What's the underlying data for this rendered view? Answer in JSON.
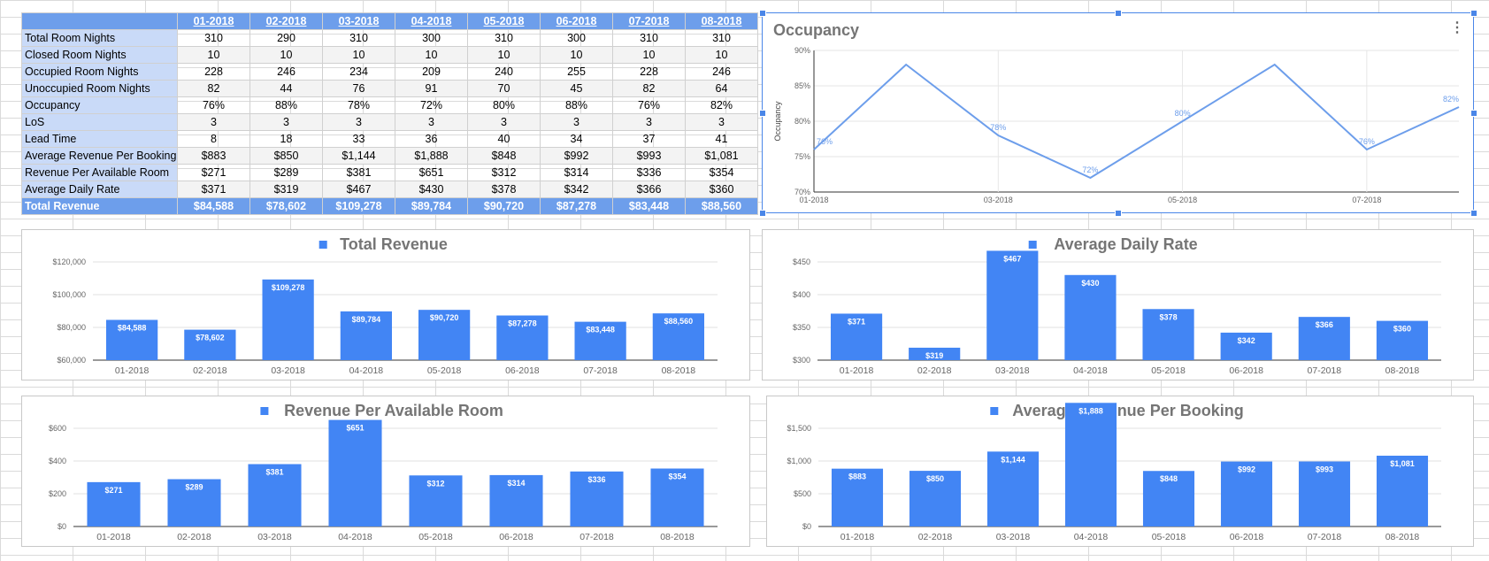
{
  "table": {
    "months": [
      "01-2018",
      "02-2018",
      "03-2018",
      "04-2018",
      "05-2018",
      "06-2018",
      "07-2018",
      "08-2018"
    ],
    "rows": [
      {
        "label": "Total Room Nights",
        "values": [
          "310",
          "290",
          "310",
          "300",
          "310",
          "300",
          "310",
          "310"
        ]
      },
      {
        "label": "Closed Room Nights",
        "values": [
          "10",
          "10",
          "10",
          "10",
          "10",
          "10",
          "10",
          "10"
        ]
      },
      {
        "label": "Occupied Room Nights",
        "values": [
          "228",
          "246",
          "234",
          "209",
          "240",
          "255",
          "228",
          "246"
        ]
      },
      {
        "label": "Unoccupied Room Nights",
        "values": [
          "82",
          "44",
          "76",
          "91",
          "70",
          "45",
          "82",
          "64"
        ]
      },
      {
        "label": "Occupancy",
        "values": [
          "76%",
          "88%",
          "78%",
          "72%",
          "80%",
          "88%",
          "76%",
          "82%"
        ]
      },
      {
        "label": "LoS",
        "values": [
          "3",
          "3",
          "3",
          "3",
          "3",
          "3",
          "3",
          "3"
        ]
      },
      {
        "label": "Lead Time",
        "values": [
          "8",
          "18",
          "33",
          "36",
          "40",
          "34",
          "37",
          "41"
        ]
      },
      {
        "label": "Average Revenue Per Booking",
        "values": [
          "$883",
          "$850",
          "$1,144",
          "$1,888",
          "$848",
          "$992",
          "$993",
          "$1,081"
        ]
      },
      {
        "label": "Revenue Per Available Room",
        "values": [
          "$271",
          "$289",
          "$381",
          "$651",
          "$312",
          "$314",
          "$336",
          "$354"
        ]
      },
      {
        "label": "Average Daily Rate",
        "values": [
          "$371",
          "$319",
          "$467",
          "$430",
          "$378",
          "$342",
          "$366",
          "$360"
        ]
      }
    ],
    "total": {
      "label": "Total Revenue",
      "values": [
        "$84,588",
        "$78,602",
        "$109,278",
        "$89,784",
        "$90,720",
        "$87,278",
        "$83,448",
        "$88,560"
      ]
    }
  },
  "colors": {
    "bar": "#4285f4",
    "line": "#6d9eeb",
    "header": "#6d9eeb",
    "label_bg": "#c9daf8",
    "axis_text": "#666666",
    "title": "#757575"
  },
  "chart_data": [
    {
      "id": "occupancy",
      "type": "line",
      "title": "Occupancy",
      "ylabel": "Occupancy",
      "legend": "none",
      "categories": [
        "01-2018",
        "02-2018",
        "03-2018",
        "04-2018",
        "05-2018",
        "06-2018",
        "07-2018",
        "08-2018"
      ],
      "values": [
        76,
        88,
        78,
        72,
        80,
        88,
        76,
        82
      ],
      "point_labels": [
        "76%",
        "",
        "78%",
        "72%",
        "80%",
        "",
        "76%",
        "82%"
      ],
      "x_ticks": [
        "01-2018",
        "03-2018",
        "05-2018",
        "07-2018"
      ],
      "ylim": [
        70,
        90
      ],
      "y_ticks": [
        70,
        75,
        80,
        85,
        90
      ],
      "y_tick_labels": [
        "70%",
        "75%",
        "80%",
        "85%",
        "90%"
      ]
    },
    {
      "id": "total_revenue",
      "type": "bar",
      "title": "Total Revenue",
      "legend": "top",
      "categories": [
        "01-2018",
        "02-2018",
        "03-2018",
        "04-2018",
        "05-2018",
        "06-2018",
        "07-2018",
        "08-2018"
      ],
      "values": [
        84588,
        78602,
        109278,
        89784,
        90720,
        87278,
        83448,
        88560
      ],
      "value_labels": [
        "$84,588",
        "$78,602",
        "$109,278",
        "$89,784",
        "$90,720",
        "$87,278",
        "$83,448",
        "$88,560"
      ],
      "ylim": [
        60000,
        120000
      ],
      "y_ticks": [
        60000,
        80000,
        100000,
        120000
      ],
      "y_tick_labels": [
        "$60,000",
        "$80,000",
        "$100,000",
        "$120,000"
      ]
    },
    {
      "id": "average_daily_rate",
      "type": "bar",
      "title": "Average Daily Rate",
      "legend": "top",
      "categories": [
        "01-2018",
        "02-2018",
        "03-2018",
        "04-2018",
        "05-2018",
        "06-2018",
        "07-2018",
        "08-2018"
      ],
      "values": [
        371,
        319,
        467,
        430,
        378,
        342,
        366,
        360
      ],
      "value_labels": [
        "$371",
        "$319",
        "$467",
        "$430",
        "$378",
        "$342",
        "$366",
        "$360"
      ],
      "ylim": [
        300,
        450
      ],
      "y_ticks": [
        300,
        350,
        400,
        450
      ],
      "y_tick_labels": [
        "$300",
        "$350",
        "$400",
        "$450"
      ]
    },
    {
      "id": "revpar",
      "type": "bar",
      "title": "Revenue Per Available Room",
      "legend": "top",
      "categories": [
        "01-2018",
        "02-2018",
        "03-2018",
        "04-2018",
        "05-2018",
        "06-2018",
        "07-2018",
        "08-2018"
      ],
      "values": [
        271,
        289,
        381,
        651,
        312,
        314,
        336,
        354
      ],
      "value_labels": [
        "$271",
        "$289",
        "$381",
        "$651",
        "$312",
        "$314",
        "$336",
        "$354"
      ],
      "ylim": [
        0,
        600
      ],
      "y_ticks": [
        0,
        200,
        400,
        600
      ],
      "y_tick_labels": [
        "$0",
        "$200",
        "$400",
        "$600"
      ]
    },
    {
      "id": "arpb",
      "type": "bar",
      "title": "Average Revenue Per Booking",
      "legend": "top",
      "categories": [
        "01-2018",
        "02-2018",
        "03-2018",
        "04-2018",
        "05-2018",
        "06-2018",
        "07-2018",
        "08-2018"
      ],
      "values": [
        883,
        850,
        1144,
        1888,
        848,
        992,
        993,
        1081
      ],
      "value_labels": [
        "$883",
        "$850",
        "$1,144",
        "$1,888",
        "$848",
        "$992",
        "$993",
        "$1,081"
      ],
      "ylim": [
        0,
        1500
      ],
      "y_ticks": [
        0,
        500,
        1000,
        1500
      ],
      "y_tick_labels": [
        "$0",
        "$500",
        "$1,000",
        "$1,500"
      ]
    }
  ]
}
